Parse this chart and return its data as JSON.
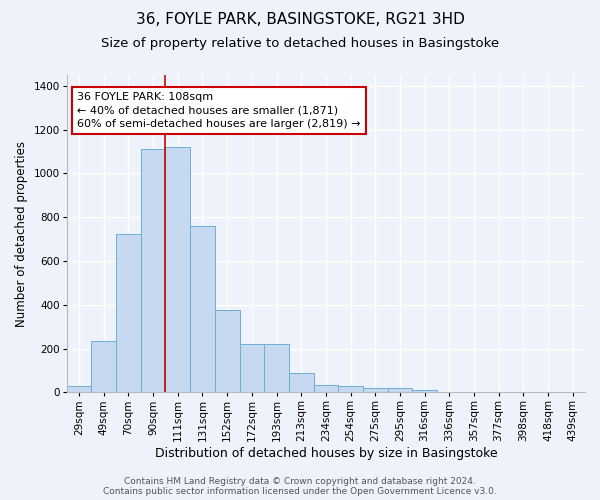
{
  "title": "36, FOYLE PARK, BASINGSTOKE, RG21 3HD",
  "subtitle": "Size of property relative to detached houses in Basingstoke",
  "xlabel": "Distribution of detached houses by size in Basingstoke",
  "ylabel": "Number of detached properties",
  "footer_line1": "Contains HM Land Registry data © Crown copyright and database right 2024.",
  "footer_line2": "Contains public sector information licensed under the Open Government Licence v3.0.",
  "categories": [
    "29sqm",
    "49sqm",
    "70sqm",
    "90sqm",
    "111sqm",
    "131sqm",
    "152sqm",
    "172sqm",
    "193sqm",
    "213sqm",
    "234sqm",
    "254sqm",
    "275sqm",
    "295sqm",
    "316sqm",
    "336sqm",
    "357sqm",
    "377sqm",
    "398sqm",
    "418sqm",
    "439sqm"
  ],
  "values": [
    30,
    235,
    725,
    1110,
    1120,
    760,
    375,
    220,
    220,
    90,
    32,
    28,
    22,
    18,
    10,
    0,
    0,
    0,
    0,
    0,
    0
  ],
  "bar_color": "#c6d9f0",
  "bar_edge_color": "#6eadd4",
  "vline_x_index": 4,
  "vline_color": "#cc0000",
  "annotation_text_line1": "36 FOYLE PARK: 108sqm",
  "annotation_text_line2": "← 40% of detached houses are smaller (1,871)",
  "annotation_text_line3": "60% of semi-detached houses are larger (2,819) →",
  "annotation_box_color": "#ffffff",
  "annotation_box_edge_color": "#cc0000",
  "ylim": [
    0,
    1450
  ],
  "yticks": [
    0,
    200,
    400,
    600,
    800,
    1000,
    1200,
    1400
  ],
  "bg_color": "#eef2fb",
  "plot_bg_color": "#eef2fb",
  "title_fontsize": 11,
  "subtitle_fontsize": 9.5,
  "xlabel_fontsize": 9,
  "ylabel_fontsize": 8.5,
  "tick_fontsize": 7.5,
  "annotation_fontsize": 8,
  "footer_fontsize": 6.5
}
